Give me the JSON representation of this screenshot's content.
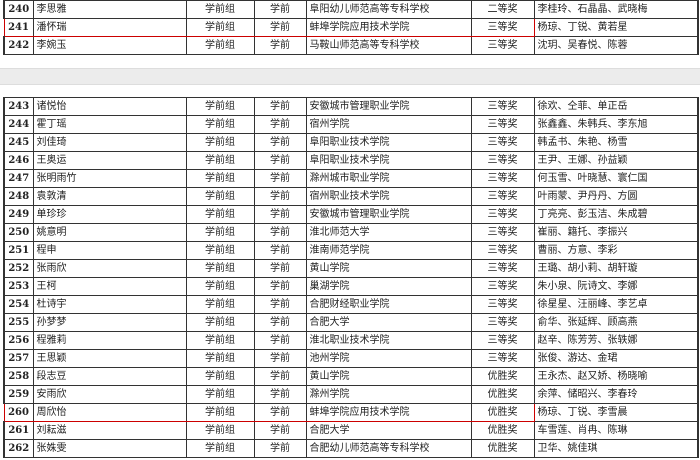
{
  "page1_rows": [
    {
      "no": "240",
      "name": "李思雅",
      "group": "学前组",
      "major": "学前",
      "school": "阜阳幼儿师范高等专科学校",
      "award": "二等奖",
      "advisors": "李桂玲、石晶晶、武晓梅"
    },
    {
      "no": "241",
      "name": "潘怀瑞",
      "group": "学前组",
      "major": "学前",
      "school": "蚌埠学院应用技术学院",
      "award": "三等奖",
      "advisors": "杨琼、丁锐、黄若星"
    },
    {
      "no": "242",
      "name": "李婉玉",
      "group": "学前组",
      "major": "学前",
      "school": "马鞍山师范高等专科学校",
      "award": "三等奖",
      "advisors": "沈玥、吴春悦、陈蓉"
    }
  ],
  "page2_rows": [
    {
      "no": "243",
      "name": "诸悦怡",
      "group": "学前组",
      "major": "学前",
      "school": "安徽城市管理职业学院",
      "award": "三等奖",
      "advisors": "徐欢、仝菲、单正岳"
    },
    {
      "no": "244",
      "name": "霍丁瑶",
      "group": "学前组",
      "major": "学前",
      "school": "宿州学院",
      "award": "三等奖",
      "advisors": "张鑫鑫、朱韩兵、李东旭"
    },
    {
      "no": "245",
      "name": "刘佳琦",
      "group": "学前组",
      "major": "学前",
      "school": "阜阳职业技术学院",
      "award": "三等奖",
      "advisors": "韩孟书、朱艳、杨雪"
    },
    {
      "no": "246",
      "name": "王奥运",
      "group": "学前组",
      "major": "学前",
      "school": "阜阳职业技术学院",
      "award": "三等奖",
      "advisors": "王尹、王娜、孙益颖"
    },
    {
      "no": "247",
      "name": "张明雨竹",
      "group": "学前组",
      "major": "学前",
      "school": "滁州城市职业学院",
      "award": "三等奖",
      "advisors": "何玉雪、叶晓慧、寰仁国"
    },
    {
      "no": "248",
      "name": "袁敦清",
      "group": "学前组",
      "major": "学前",
      "school": "宿州职业技术学院",
      "award": "三等奖",
      "advisors": "叶雨蒙、尹丹丹、方圆"
    },
    {
      "no": "249",
      "name": "单珍珍",
      "group": "学前组",
      "major": "学前",
      "school": "安徽城市管理职业学院",
      "award": "三等奖",
      "advisors": "丁亮亮、彭玉洁、朱成碧"
    },
    {
      "no": "250",
      "name": "姚意明",
      "group": "学前组",
      "major": "学前",
      "school": "淮北师范大学",
      "award": "三等奖",
      "advisors": "崔丽、籍托、李振兴"
    },
    {
      "no": "251",
      "name": "程申",
      "group": "学前组",
      "major": "学前",
      "school": "淮南师范学院",
      "award": "三等奖",
      "advisors": "曹丽、方意、李彩"
    },
    {
      "no": "252",
      "name": "张雨欣",
      "group": "学前组",
      "major": "学前",
      "school": "黄山学院",
      "award": "三等奖",
      "advisors": "王璐、胡小莉、胡轩璇"
    },
    {
      "no": "253",
      "name": "王柯",
      "group": "学前组",
      "major": "学前",
      "school": "巢湖学院",
      "award": "三等奖",
      "advisors": "朱小泉、阮诗文、李娜"
    },
    {
      "no": "254",
      "name": "杜诗宇",
      "group": "学前组",
      "major": "学前",
      "school": "合肥财经职业学院",
      "award": "三等奖",
      "advisors": "徐星星、汪丽峰、李艺卓"
    },
    {
      "no": "255",
      "name": "孙梦梦",
      "group": "学前组",
      "major": "学前",
      "school": "合肥大学",
      "award": "三等奖",
      "advisors": "俞华、张延辉、顾高燕"
    },
    {
      "no": "256",
      "name": "程雅莉",
      "group": "学前组",
      "major": "学前",
      "school": "淮北职业技术学院",
      "award": "三等奖",
      "advisors": "赵辛、陈芳芳、张轶娜"
    },
    {
      "no": "257",
      "name": "王思颖",
      "group": "学前组",
      "major": "学前",
      "school": "池州学院",
      "award": "三等奖",
      "advisors": "张俊、游达、金珺"
    },
    {
      "no": "258",
      "name": "段志豆",
      "group": "学前组",
      "major": "学前",
      "school": "黄山学院",
      "award": "优胜奖",
      "advisors": "王永杰、赵又娇、杨晓喻"
    },
    {
      "no": "259",
      "name": "安雨欣",
      "group": "学前组",
      "major": "学前",
      "school": "滁州学院",
      "award": "优胜奖",
      "advisors": "余萍、储昭兴、李春玲"
    },
    {
      "no": "260",
      "name": "周欣怡",
      "group": "学前组",
      "major": "学前",
      "school": "蚌埠学院应用技术学院",
      "award": "优胜奖",
      "advisors": "杨琼、丁锐、李雪晨"
    },
    {
      "no": "261",
      "name": "刘耘滋",
      "group": "学前组",
      "major": "学前",
      "school": "合肥大学",
      "award": "优胜奖",
      "advisors": "车雪莲、肖冉、陈琳"
    },
    {
      "no": "262",
      "name": "张姝雯",
      "group": "学前组",
      "major": "学前",
      "school": "合肥幼儿师范高等专科学校",
      "award": "优胜奖",
      "advisors": "卫华、姚佳琪"
    }
  ],
  "highlighted_rows": [
    "241",
    "260"
  ],
  "colors": {
    "highlight": "#cc0000",
    "page_gap": "#ececec"
  }
}
